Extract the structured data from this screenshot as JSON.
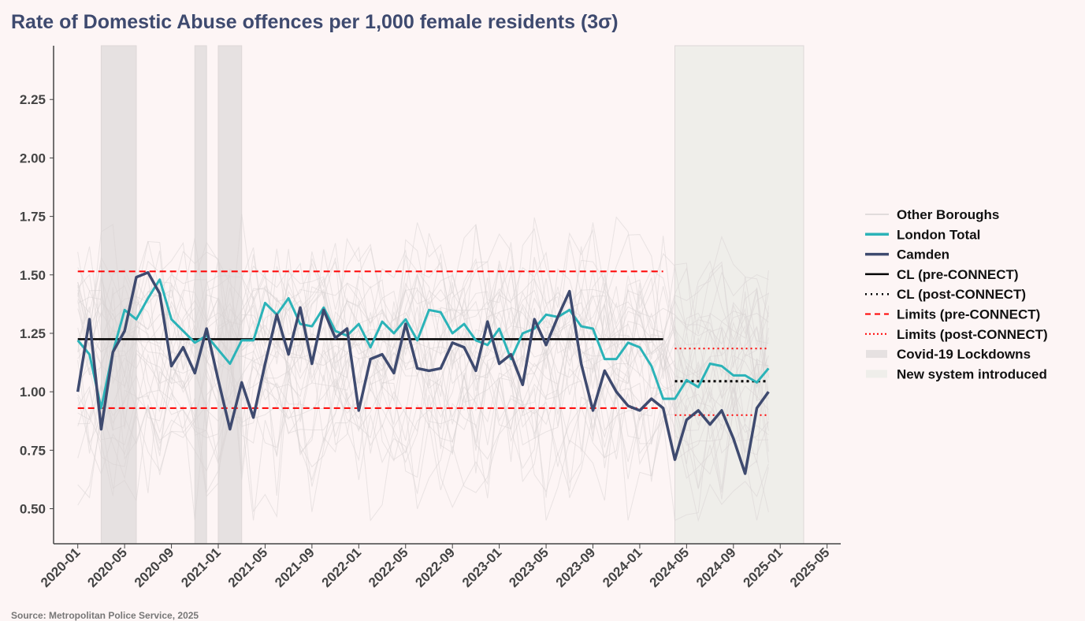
{
  "chart_data": {
    "type": "line",
    "title": "Rate of Domestic Abuse offences per 1,000 female residents (3σ)",
    "source": "Source: Metropolitan Police Service, 2025",
    "xlabel": "",
    "ylabel": "",
    "xlim": [
      "2019-10-29",
      "2025-06-06"
    ],
    "ylim": [
      0.35,
      2.48
    ],
    "yticks": [
      0.5,
      0.75,
      1.0,
      1.25,
      1.5,
      1.75,
      2.0,
      2.25
    ],
    "ytick_labels": [
      "0.50",
      "0.75",
      "1.00",
      "1.25",
      "1.50",
      "1.75",
      "2.00",
      "2.25"
    ],
    "xticks": [
      "2020-01",
      "2020-05",
      "2020-09",
      "2021-01",
      "2021-05",
      "2021-09",
      "2022-01",
      "2022-05",
      "2022-09",
      "2023-01",
      "2023-05",
      "2023-09",
      "2024-01",
      "2024-05",
      "2024-09",
      "2025-01",
      "2025-05"
    ],
    "grid": false,
    "legend_placement": "right",
    "x_start": "2020-01",
    "series": [
      {
        "name": "London Total",
        "color": "#2bb3b8",
        "values": [
          1.22,
          1.16,
          0.93,
          1.17,
          1.35,
          1.31,
          1.4,
          1.48,
          1.31,
          1.26,
          1.21,
          1.24,
          1.18,
          1.12,
          1.22,
          1.22,
          1.38,
          1.33,
          1.4,
          1.29,
          1.28,
          1.36,
          1.26,
          1.24,
          1.29,
          1.19,
          1.3,
          1.25,
          1.31,
          1.22,
          1.35,
          1.34,
          1.25,
          1.29,
          1.22,
          1.2,
          1.27,
          1.14,
          1.25,
          1.27,
          1.33,
          1.32,
          1.35,
          1.28,
          1.27,
          1.14,
          1.14,
          1.21,
          1.19,
          1.11,
          0.97,
          0.97,
          1.05,
          1.02,
          1.12,
          1.11,
          1.07,
          1.07,
          1.04,
          1.1
        ]
      },
      {
        "name": "Camden",
        "color": "#3e4a6f",
        "values": [
          1.0,
          1.31,
          0.84,
          1.17,
          1.26,
          1.49,
          1.51,
          1.42,
          1.11,
          1.19,
          1.08,
          1.27,
          1.05,
          0.84,
          1.04,
          0.89,
          1.12,
          1.33,
          1.16,
          1.36,
          1.12,
          1.35,
          1.23,
          1.27,
          0.92,
          1.14,
          1.16,
          1.08,
          1.29,
          1.1,
          1.09,
          1.1,
          1.21,
          1.19,
          1.09,
          1.3,
          1.12,
          1.16,
          1.03,
          1.31,
          1.2,
          1.32,
          1.43,
          1.12,
          0.92,
          1.09,
          1.0,
          0.94,
          0.92,
          0.97,
          0.93,
          0.71,
          0.88,
          0.92,
          0.86,
          0.92,
          0.8,
          0.65,
          0.93,
          1.0
        ]
      }
    ],
    "control_limits": {
      "pre": {
        "label_cl": "CL (pre-CONNECT)",
        "label_limits": "Limits (pre-CONNECT)",
        "from": "2020-01",
        "to": "2024-03",
        "cl": 1.225,
        "ucl": 1.515,
        "lcl": 0.93
      },
      "post": {
        "label_cl": "CL (post-CONNECT)",
        "label_limits": "Limits (post-CONNECT)",
        "from": "2024-04",
        "to": "2024-12",
        "cl": 1.045,
        "ucl": 1.185,
        "lcl": 0.9
      }
    },
    "shaded_periods": [
      {
        "label": "Covid-19 Lockdowns",
        "from": "2020-03",
        "to": "2020-06",
        "color": "#e6e1e1"
      },
      {
        "label": "Covid-19 Lockdowns",
        "from": "2020-11",
        "to": "2020-12",
        "color": "#e6e1e1"
      },
      {
        "label": "Covid-19 Lockdowns",
        "from": "2021-01",
        "to": "2021-03",
        "color": "#e6e1e1"
      },
      {
        "label": "New system introduced",
        "from": "2024-04",
        "to": "2025-03",
        "color": "#efeeea"
      }
    ],
    "legend": [
      "Other Boroughs",
      "London Total",
      "Camden",
      "CL (pre-CONNECT)",
      "CL (post-CONNECT)",
      "Limits (pre-CONNECT)",
      "Limits (post-CONNECT)",
      "Covid-19 Lockdowns",
      "New system introduced"
    ],
    "colors": {
      "other_boroughs": "#d8d4d4",
      "cl": "#000000",
      "limits": "#ff0000"
    }
  }
}
